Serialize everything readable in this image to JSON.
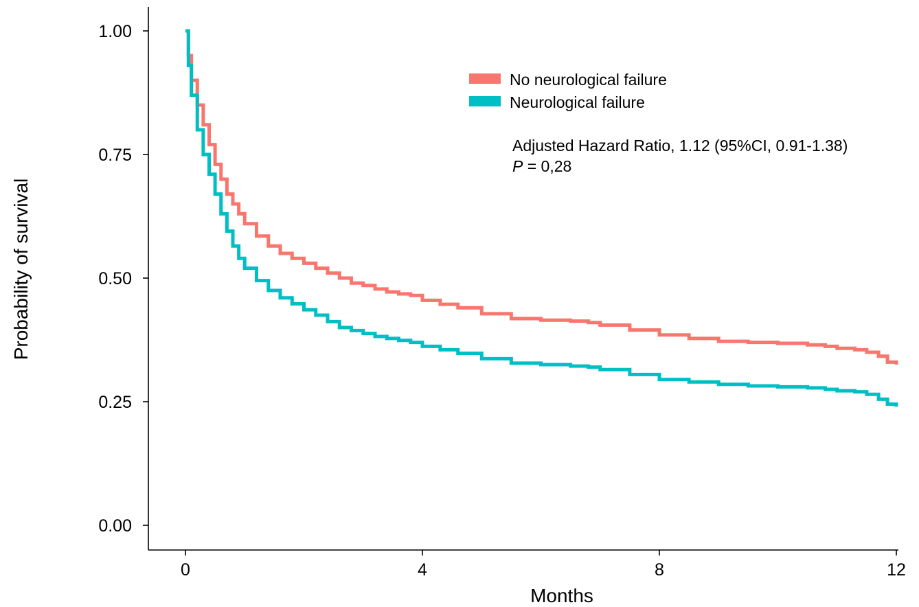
{
  "chart_data": {
    "type": "line",
    "xlabel": "Months",
    "ylabel": "Probability of survival",
    "xlim": [
      0,
      12
    ],
    "ylim": [
      0,
      1
    ],
    "x_ticks": [
      "0",
      "4",
      "8",
      "12"
    ],
    "y_ticks": [
      "0.00",
      "0.25",
      "0.50",
      "0.75",
      "1.00"
    ],
    "grid": false,
    "legend_position": "top-right",
    "series": [
      {
        "name": "No neurological failure",
        "color": "#f8766d",
        "x": [
          0,
          0.05,
          0.1,
          0.2,
          0.3,
          0.4,
          0.5,
          0.6,
          0.7,
          0.8,
          0.9,
          1.0,
          1.2,
          1.4,
          1.6,
          1.8,
          2.0,
          2.2,
          2.4,
          2.6,
          2.8,
          3.0,
          3.2,
          3.4,
          3.6,
          3.8,
          4.0,
          4.3,
          4.6,
          5.0,
          5.5,
          6.0,
          6.5,
          6.8,
          7.0,
          7.5,
          8.0,
          8.5,
          9.0,
          9.5,
          10.0,
          10.5,
          10.8,
          11.0,
          11.3,
          11.5,
          11.7,
          11.85,
          12.0
        ],
        "y": [
          1.0,
          0.95,
          0.9,
          0.85,
          0.81,
          0.77,
          0.73,
          0.7,
          0.67,
          0.65,
          0.63,
          0.61,
          0.585,
          0.565,
          0.55,
          0.54,
          0.53,
          0.52,
          0.51,
          0.5,
          0.49,
          0.485,
          0.478,
          0.472,
          0.468,
          0.465,
          0.455,
          0.447,
          0.44,
          0.428,
          0.418,
          0.415,
          0.413,
          0.41,
          0.405,
          0.395,
          0.385,
          0.378,
          0.372,
          0.37,
          0.368,
          0.365,
          0.362,
          0.358,
          0.355,
          0.35,
          0.342,
          0.33,
          0.325
        ]
      },
      {
        "name": "Neurological failure",
        "color": "#00bfc4",
        "x": [
          0,
          0.05,
          0.1,
          0.2,
          0.3,
          0.4,
          0.5,
          0.6,
          0.7,
          0.8,
          0.9,
          1.0,
          1.2,
          1.4,
          1.6,
          1.8,
          2.0,
          2.2,
          2.4,
          2.6,
          2.8,
          3.0,
          3.2,
          3.4,
          3.6,
          3.8,
          4.0,
          4.3,
          4.6,
          5.0,
          5.5,
          6.0,
          6.5,
          6.8,
          7.0,
          7.5,
          8.0,
          8.5,
          9.0,
          9.5,
          10.0,
          10.5,
          10.8,
          11.0,
          11.3,
          11.5,
          11.7,
          11.85,
          12.0
        ],
        "y": [
          1.0,
          0.93,
          0.87,
          0.8,
          0.75,
          0.71,
          0.67,
          0.63,
          0.595,
          0.565,
          0.54,
          0.52,
          0.495,
          0.475,
          0.46,
          0.448,
          0.436,
          0.425,
          0.412,
          0.4,
          0.394,
          0.388,
          0.382,
          0.378,
          0.374,
          0.37,
          0.362,
          0.355,
          0.348,
          0.337,
          0.328,
          0.325,
          0.322,
          0.32,
          0.315,
          0.305,
          0.295,
          0.29,
          0.285,
          0.282,
          0.28,
          0.278,
          0.275,
          0.272,
          0.27,
          0.265,
          0.255,
          0.245,
          0.24
        ]
      }
    ],
    "annotations": {
      "hr_text": "Adjusted Hazard Ratio, 1.12 (95%CI, 0.91-1.38)",
      "p_label": "P",
      "p_value_text": " = 0,28"
    }
  }
}
